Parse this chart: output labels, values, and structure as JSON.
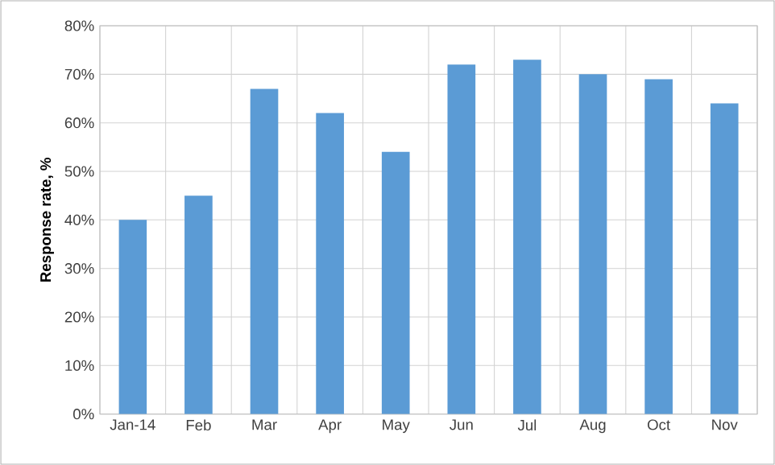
{
  "chart_data": {
    "type": "bar",
    "ylabel": "Response rate, %",
    "categories": [
      "Jan-14",
      "Feb",
      "Mar",
      "Apr",
      "May",
      "Jun",
      "Jul",
      "Aug",
      "Oct",
      "Nov"
    ],
    "values": [
      40,
      45,
      67,
      62,
      54,
      72,
      73,
      70,
      69,
      64
    ],
    "color": "#5b9bd5",
    "ylim": [
      0,
      80
    ],
    "yticks": [
      {
        "value": 0,
        "label": "0%"
      },
      {
        "value": 10,
        "label": "10%"
      },
      {
        "value": 20,
        "label": "20%"
      },
      {
        "value": 30,
        "label": "30%"
      },
      {
        "value": 40,
        "label": "40%"
      },
      {
        "value": 50,
        "label": "50%"
      },
      {
        "value": 60,
        "label": "60%"
      },
      {
        "value": 70,
        "label": "70%"
      },
      {
        "value": 80,
        "label": "80%"
      }
    ],
    "grid": true
  }
}
